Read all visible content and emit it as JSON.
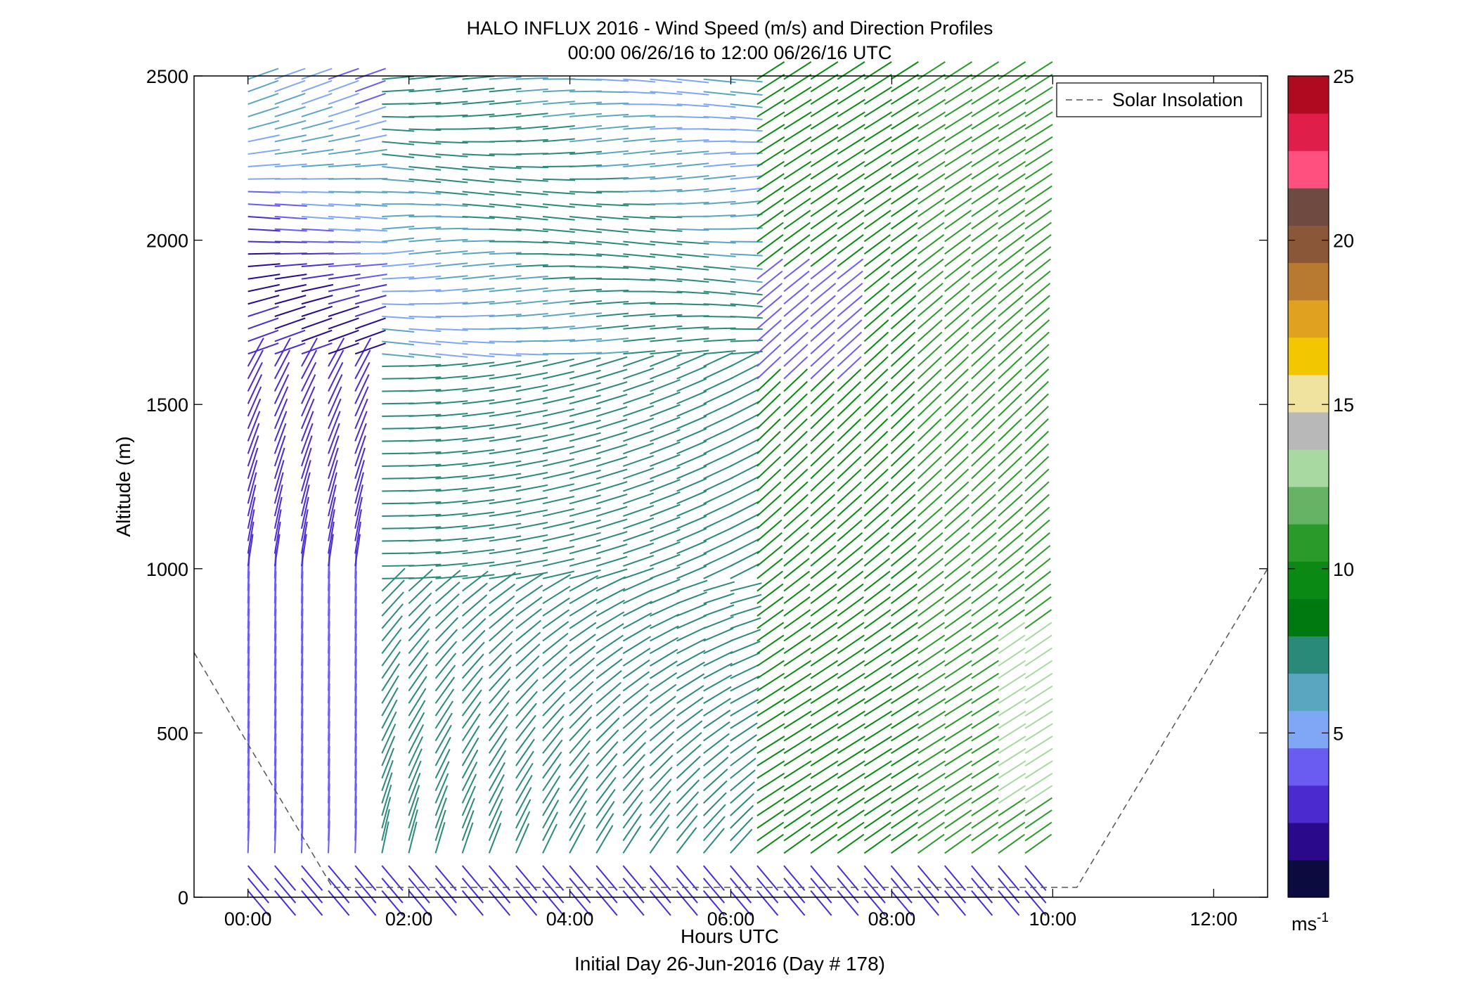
{
  "chart_data": {
    "type": "wind-barb-profile",
    "title": "HALO INFLUX 2016 - Wind Speed (m/s) and Direction Profiles",
    "subtitle": "00:00 06/26/16 to 12:00 06/26/16  UTC",
    "xlabel": "Hours UTC",
    "xlabel2": "Initial Day 26-Jun-2016 (Day # 178)",
    "ylabel": "Altitude (m)",
    "xlim_hours": [
      -0.67,
      12.67
    ],
    "ylim": [
      0,
      2500
    ],
    "xtick_hours": [
      0,
      2,
      4,
      6,
      8,
      10,
      12
    ],
    "xtick_labels": [
      "00:00",
      "02:00",
      "04:00",
      "06:00",
      "08:00",
      "10:00",
      "12:00"
    ],
    "ytick_values": [
      0,
      500,
      1000,
      1500,
      2000,
      2500
    ],
    "ytick_labels": [
      "0",
      "500",
      "1000",
      "1500",
      "2000",
      "2500"
    ],
    "profile_start_hour": 0.0,
    "profile_interval_hours": 0.333,
    "profile_count": 30,
    "altitude_step_m": 38,
    "top_altitude_m": 2490,
    "legend": {
      "label": "Solar Insolation",
      "placement": "top-right",
      "style": "dashed",
      "color": "#555555"
    },
    "solar_insolation_line": [
      {
        "hour": -0.67,
        "altitude": 745
      },
      {
        "hour": 1.05,
        "altitude": 30
      },
      {
        "hour": 10.3,
        "altitude": 30
      },
      {
        "hour": 12.67,
        "altitude": 1000
      }
    ],
    "colorbar": {
      "min": 0,
      "max": 25,
      "ticks": [
        5,
        10,
        15,
        20,
        25
      ],
      "tick_labels": [
        "5",
        "10",
        "15",
        "20",
        "25"
      ],
      "unit_base": "ms",
      "unit_exp": "-1",
      "colors": [
        "#0b0b40",
        "#2a0a8a",
        "#4b2bd0",
        "#6a5cf0",
        "#7fa7f5",
        "#5aa6c0",
        "#2a8a7a",
        "#007a10",
        "#0a8a14",
        "#2a9a2a",
        "#66b366",
        "#a7d9a0",
        "#b8b8b8",
        "#f0e3a0",
        "#f2c600",
        "#e0a020",
        "#b87a30",
        "#8a5838",
        "#6e4a40",
        "#ff5080",
        "#e01e4a",
        "#b00a20"
      ]
    },
    "wind_regimes": [
      {
        "region": "00:00-01:30, 1650-2500 m",
        "speed_ms": [
          3,
          6
        ],
        "direction": "westerly, turning"
      },
      {
        "region": "00:00-01:30, 0-1650 m",
        "speed_ms": [
          3,
          5
        ],
        "direction": "southerly"
      },
      {
        "region": "01:30-06:00, 900-1600 m",
        "speed_ms": [
          6,
          9
        ],
        "direction": "westerly"
      },
      {
        "region": "01:30-06:00, 0-1000 m",
        "speed_ms": [
          6,
          9
        ],
        "direction": "southerly"
      },
      {
        "region": "06:00-11:45, 300-2500 m",
        "speed_ms": [
          8,
          12
        ],
        "direction": "southwesterly"
      },
      {
        "region": "09:00-11:45, 250-800 m",
        "speed_ms": [
          12,
          14
        ],
        "direction": "southwesterly"
      },
      {
        "region": "all times, 0-100 m",
        "speed_ms": [
          2,
          4
        ],
        "direction": "variable"
      }
    ]
  }
}
